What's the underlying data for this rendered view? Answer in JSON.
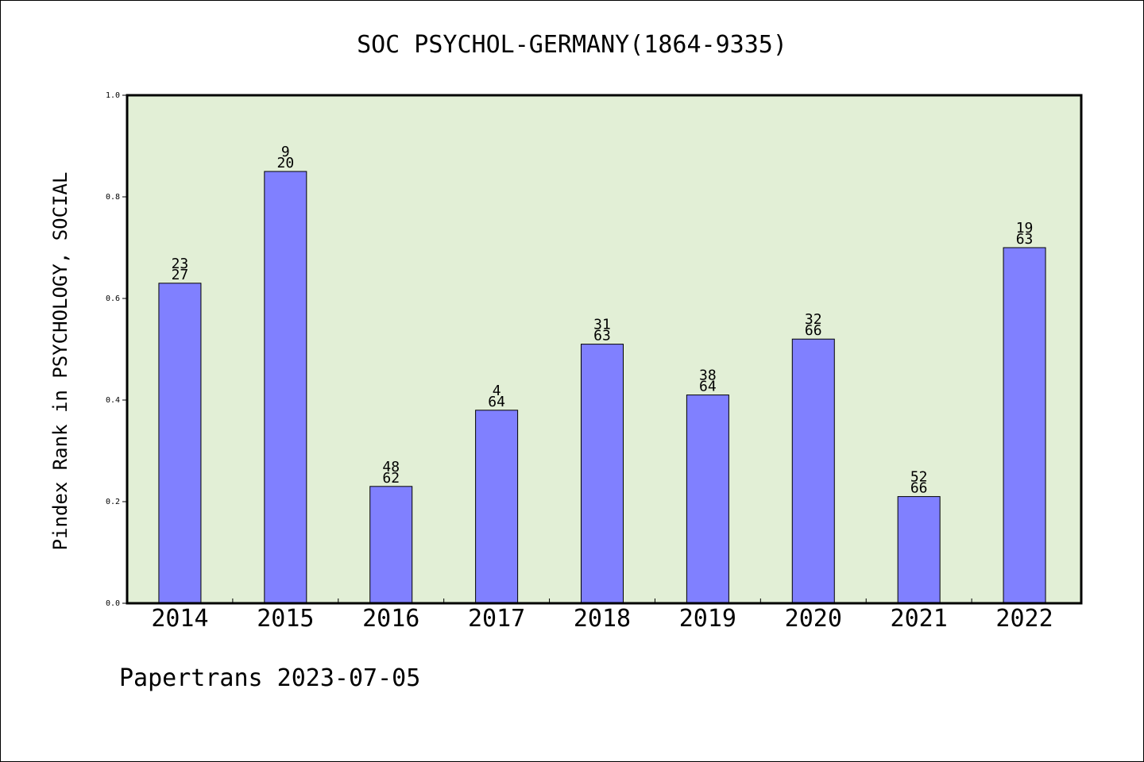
{
  "chart_data": {
    "type": "bar",
    "title": "SOC PSYCHOL-GERMANY(1864-9335)",
    "xlabel": "",
    "ylabel": "Pindex Rank in PSYCHOLOGY, SOCIAL",
    "categories": [
      "2014",
      "2015",
      "2016",
      "2017",
      "2018",
      "2019",
      "2020",
      "2021",
      "2022"
    ],
    "values": [
      0.63,
      0.85,
      0.23,
      0.38,
      0.51,
      0.41,
      0.52,
      0.21,
      0.7
    ],
    "labels_top": [
      "23",
      "9",
      "48",
      "4",
      "31",
      "38",
      "32",
      "52",
      "19"
    ],
    "labels_bottom": [
      "27",
      "20",
      "62",
      "64",
      "63",
      "64",
      "66",
      "66",
      "63"
    ],
    "ylim": [
      0,
      1.0
    ],
    "yticks": [
      "0.0",
      "0.2",
      "0.4",
      "0.6",
      "0.8",
      "1.0"
    ],
    "grid": false,
    "legend": "none",
    "colors": {
      "bar": "#8080ff",
      "plot_background": "#e2efd6",
      "axis": "#000000"
    }
  },
  "footer": {
    "credit": "Papertrans 2023-07-05"
  }
}
